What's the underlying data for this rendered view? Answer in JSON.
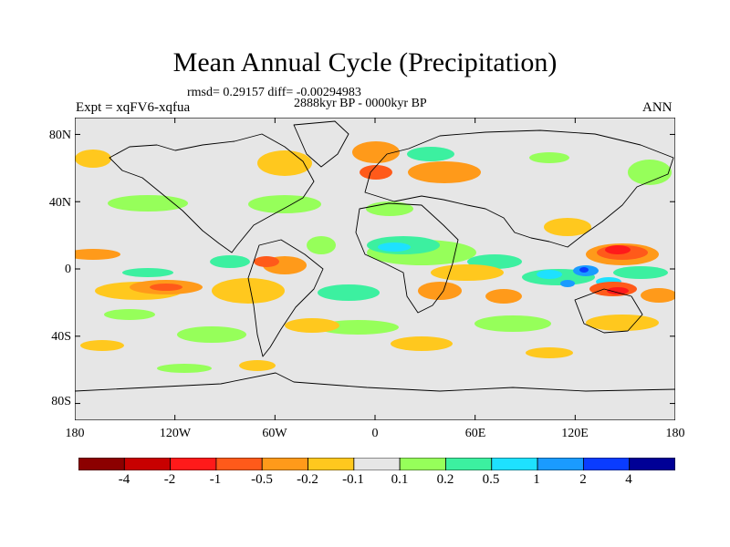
{
  "title": "Mean Annual Cycle (Precipitation)",
  "stats": "rmsd= 0.29157 diff= -0.00294983",
  "period": "2888kyr BP - 0000kyr BP",
  "experiment": "Expt = xqFV6-xqfua",
  "season": "ANN",
  "map": {
    "projection": "cylindrical equidistant",
    "lon_range": [
      -180,
      180
    ],
    "lat_range": [
      -90,
      90
    ],
    "lat_ticks": [
      "80N",
      "40N",
      "0",
      "40S",
      "80S"
    ],
    "lat_tick_values": [
      80,
      40,
      0,
      -40,
      -80
    ],
    "lon_ticks": [
      "180",
      "120W",
      "60W",
      "0",
      "60E",
      "120E",
      "180"
    ],
    "lon_tick_values": [
      -180,
      -120,
      -60,
      0,
      60,
      120,
      180
    ],
    "background_color": "#e6e6e6",
    "coastline_color": "#000000"
  },
  "colorbar": {
    "labels": [
      "-4",
      "-2",
      "-1",
      "-0.5",
      "-0.2",
      "-0.1",
      "0.1",
      "0.2",
      "0.5",
      "1",
      "2",
      "4"
    ],
    "colors": [
      "#8c0000",
      "#c80000",
      "#ff1a1a",
      "#ff5a1a",
      "#ff9a1a",
      "#ffc81e",
      "#e6e6e6",
      "#96ff5a",
      "#3cf0a0",
      "#1ee1ff",
      "#1a9bff",
      "#0a3cff",
      "#000096"
    ]
  }
}
